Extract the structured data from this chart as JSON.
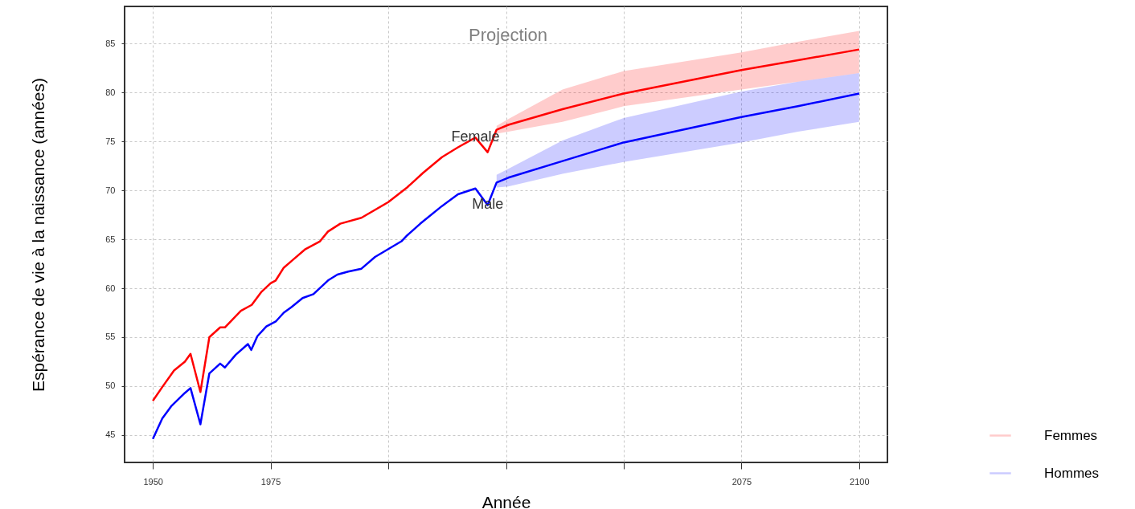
{
  "chart_data": {
    "type": "line",
    "xlabel": "Année",
    "ylabel": "Espérance de vie à la naissance (années)",
    "xlim": [
      1944,
      2106
    ],
    "ylim": [
      42.2,
      88.8
    ],
    "xticks": [
      1950,
      1975,
      {
        "value": 2000,
        "label": null
      },
      {
        "value": 2025,
        "label": null
      },
      {
        "value": 2050,
        "label": null
      },
      2075,
      2100
    ],
    "yticks": [
      45,
      50,
      55,
      60,
      65,
      70,
      75,
      80,
      85
    ],
    "grid": true,
    "legend": "bottom right",
    "marker": "none",
    "line_style": "solid",
    "annotations": [
      "Projection",
      {
        "text": "Female",
        "x": 2018.5,
        "y": 75.4
      },
      {
        "text": "Male",
        "x": 2021.1,
        "y": 68.5
      }
    ],
    "series": [
      {
        "name": "Femmes",
        "color": "#ff0000",
        "x": [
          1950,
          1952,
          1954.5,
          1956.8,
          1958,
          1960.1,
          1962,
          1964.3,
          1965.3,
          1968.7,
          1971,
          1973,
          1975,
          1976.1,
          1977.8,
          1979.5,
          1982.4,
          1985.5,
          1987.2,
          1989.8,
          1994.3,
          2000,
          2004,
          2007.4,
          2011.4,
          2014.8,
          2018.5,
          2021.1,
          2023,
          2025.5,
          2037,
          2050,
          2075,
          2087,
          2100
        ],
        "values": [
          48.5,
          49.9,
          51.6,
          52.5,
          53.3,
          49.4,
          55.0,
          56.0,
          56.0,
          57.7,
          58.3,
          59.6,
          60.5,
          60.8,
          62.1,
          62.8,
          64.0,
          64.8,
          65.8,
          66.6,
          67.2,
          68.8,
          70.3,
          71.8,
          73.4,
          74.4,
          75.4,
          73.9,
          76.2,
          76.7,
          78.3,
          79.9,
          82.3,
          83.3,
          84.4
        ],
        "lower": [
          null,
          null,
          null,
          null,
          null,
          null,
          null,
          null,
          null,
          null,
          null,
          null,
          null,
          null,
          null,
          null,
          null,
          null,
          null,
          null,
          null,
          null,
          null,
          null,
          null,
          null,
          null,
          null,
          75.8,
          76.0,
          77.0,
          78.6,
          80.3,
          81.1,
          82.0
        ],
        "upper": [
          null,
          null,
          null,
          null,
          null,
          null,
          null,
          null,
          null,
          null,
          null,
          null,
          null,
          null,
          null,
          null,
          null,
          null,
          null,
          null,
          null,
          null,
          null,
          null,
          null,
          null,
          null,
          null,
          76.6,
          77.3,
          80.3,
          82.2,
          84.1,
          85.2,
          86.3
        ]
      },
      {
        "name": "Hommes",
        "color": "#0000ff",
        "x": [
          1950,
          1952,
          1954,
          1956.8,
          1958,
          1960.1,
          1962,
          1964.3,
          1965.3,
          1967.6,
          1970.2,
          1970.9,
          1972.2,
          1974.1,
          1976.1,
          1977.8,
          1979.5,
          1981.8,
          1984.1,
          1987.2,
          1989.2,
          1991.5,
          1994.3,
          1997.2,
          2000,
          2002.8,
          2004,
          2006.8,
          2011.4,
          2014.8,
          2018.5,
          2021.1,
          2023,
          2025.5,
          2037,
          2050,
          2075,
          2087,
          2100
        ],
        "values": [
          44.6,
          46.7,
          48.0,
          49.3,
          49.8,
          46.1,
          51.3,
          52.3,
          51.9,
          53.2,
          54.3,
          53.7,
          55.1,
          56.1,
          56.6,
          57.5,
          58.1,
          59.0,
          59.4,
          60.8,
          61.4,
          61.7,
          62.0,
          63.2,
          64.0,
          64.8,
          65.4,
          66.6,
          68.4,
          69.6,
          70.2,
          68.5,
          70.8,
          71.3,
          73.0,
          74.9,
          77.5,
          78.6,
          79.9
        ],
        "lower": [
          null,
          null,
          null,
          null,
          null,
          null,
          null,
          null,
          null,
          null,
          null,
          null,
          null,
          null,
          null,
          null,
          null,
          null,
          null,
          null,
          null,
          null,
          null,
          null,
          null,
          null,
          null,
          null,
          null,
          null,
          null,
          null,
          70.3,
          70.4,
          71.7,
          72.9,
          74.9,
          76.0,
          77.0
        ],
        "upper": [
          null,
          null,
          null,
          null,
          null,
          null,
          null,
          null,
          null,
          null,
          null,
          null,
          null,
          null,
          null,
          null,
          null,
          null,
          null,
          null,
          null,
          null,
          null,
          null,
          null,
          null,
          null,
          null,
          null,
          null,
          null,
          null,
          71.6,
          72.2,
          75.1,
          77.4,
          80.1,
          81.1,
          82.0
        ]
      }
    ]
  }
}
